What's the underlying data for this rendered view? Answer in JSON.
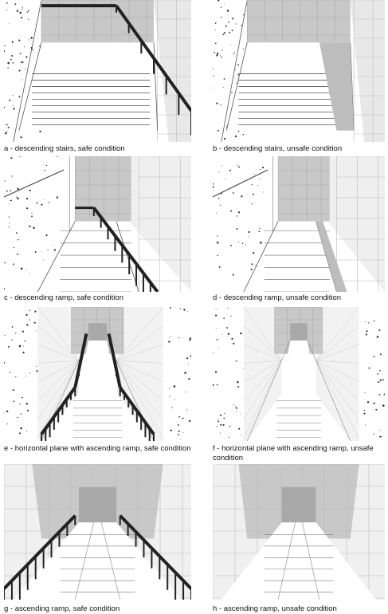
{
  "panels": [
    {
      "caption": "a - descending stairs, safe condition"
    },
    {
      "caption": "b - descending stairs, unsafe condition"
    },
    {
      "caption": "c - descending ramp, safe condition"
    },
    {
      "caption": "d - descending ramp, unsafe condition"
    },
    {
      "caption": "e - horizontal plane with ascending ramp, safe condition"
    },
    {
      "caption": "f - horizontal plane with ascending ramp, unsafe condition"
    },
    {
      "caption": "g - ascending ramp, safe condition"
    },
    {
      "caption": "h - ascending ramp, unsafe condition"
    }
  ]
}
